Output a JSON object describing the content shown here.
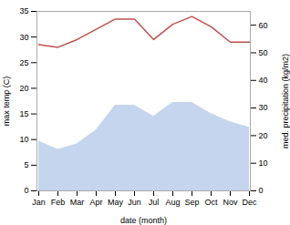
{
  "chart_data": {
    "type": "line",
    "xlabel": "date (month)",
    "ylabel": "max temp (C)",
    "y2label": "med. precipitation (kg/m2)",
    "categories": [
      "Jan",
      "Feb",
      "Mar",
      "Apr",
      "May",
      "Jun",
      "Jul",
      "Aug",
      "Sep",
      "Oct",
      "Nov",
      "Dec"
    ],
    "series": [
      {
        "type": "area",
        "axis": "y2",
        "color": "#c5d5ee",
        "values": [
          18,
          15,
          17,
          22,
          31,
          31,
          27,
          32,
          32,
          28,
          25,
          23
        ]
      },
      {
        "type": "line",
        "color": "#c0504d",
        "values": [
          28.5,
          28.0,
          29.5,
          31.5,
          33.5,
          33.5,
          29.5,
          32.5,
          34.0,
          32.0,
          29.0,
          29.0
        ]
      }
    ],
    "ylim": [
      0,
      35
    ],
    "yticks": [
      0,
      5,
      10,
      15,
      20,
      25,
      30,
      35
    ],
    "y2lim": [
      0,
      65
    ],
    "y2ticks": [
      0,
      10,
      20,
      30,
      40,
      50,
      60
    ],
    "grid": false
  }
}
